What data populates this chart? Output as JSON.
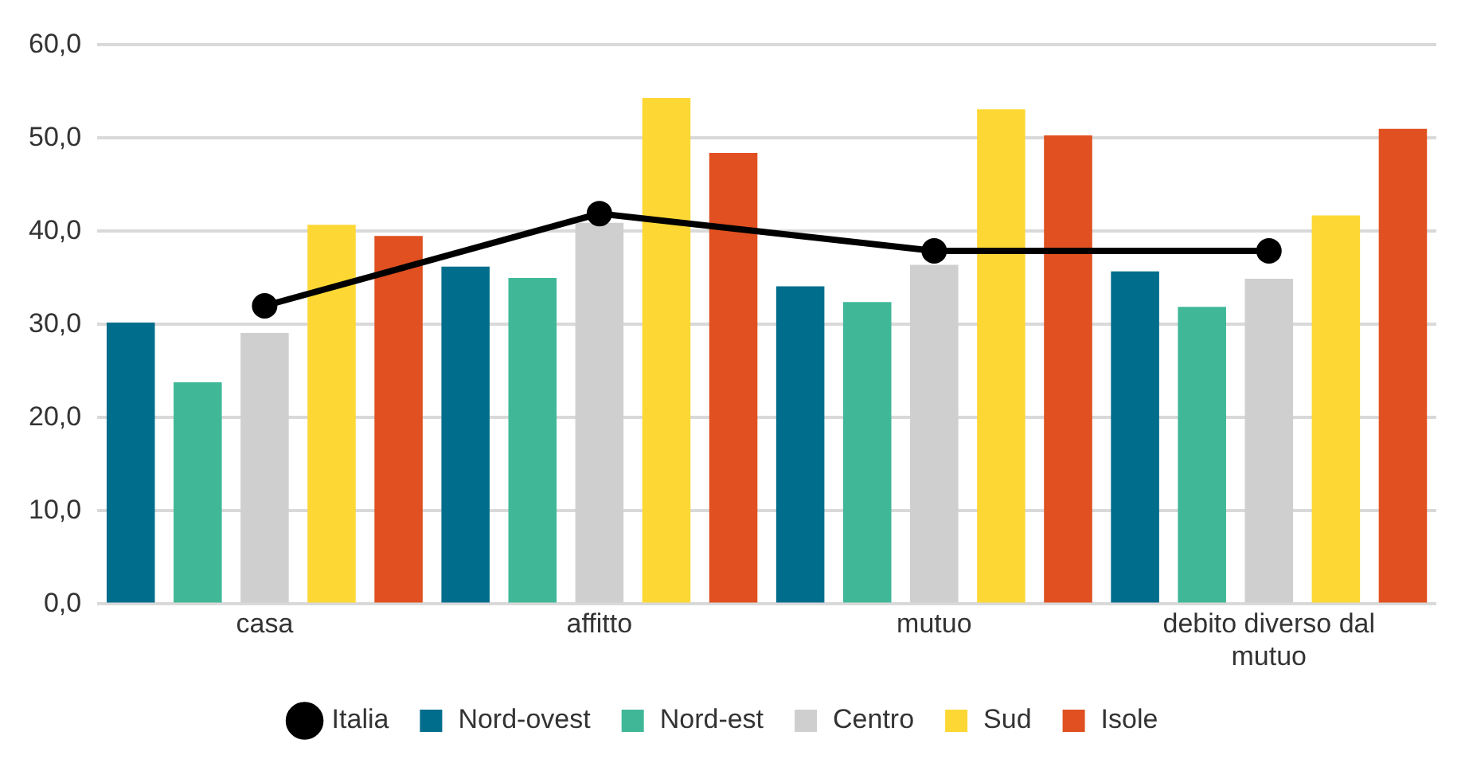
{
  "chart_data": {
    "type": "bar",
    "categories": [
      "casa",
      "affitto",
      "mutuo",
      "debito diverso dal mutuo"
    ],
    "series": [
      {
        "name": "Nord-ovest",
        "color": "#006d8c",
        "values": [
          30.2,
          36.2,
          34.1,
          35.7
        ]
      },
      {
        "name": "Nord-est",
        "color": "#40b898",
        "values": [
          23.8,
          35.0,
          32.4,
          31.9
        ]
      },
      {
        "name": "Centro",
        "color": "#d0cfcf",
        "values": [
          29.1,
          40.9,
          36.4,
          34.9
        ]
      },
      {
        "name": "Sud",
        "color": "#fdd835",
        "values": [
          40.7,
          54.3,
          53.1,
          41.7
        ]
      },
      {
        "name": "Isole",
        "color": "#e05020",
        "values": [
          39.5,
          48.4,
          50.3,
          51.0
        ]
      },
      {
        "name": "Italia",
        "color": "#000000",
        "type": "line",
        "values": [
          32.0,
          41.9,
          37.9,
          37.9
        ]
      }
    ],
    "ylim": [
      0,
      60
    ],
    "yticks": [
      {
        "value": 0,
        "label": "0,0"
      },
      {
        "value": 10,
        "label": "10,0"
      },
      {
        "value": 20,
        "label": "20,0"
      },
      {
        "value": 30,
        "label": "30,0"
      },
      {
        "value": 40,
        "label": "40,0"
      },
      {
        "value": 50,
        "label": "50,0"
      },
      {
        "value": 60,
        "label": "60,0"
      }
    ],
    "grid": "y",
    "legend": "bottom",
    "marker": "circle"
  }
}
